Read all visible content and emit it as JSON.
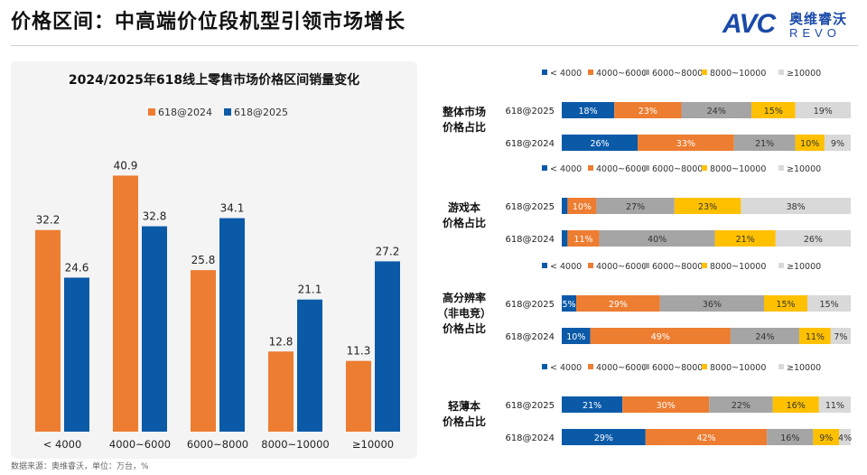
{
  "page": {
    "title": "价格区间：中高端价位段机型引领市场增长",
    "logo": {
      "avc": "AVC",
      "cn": "奥维睿沃",
      "revo": "REVO"
    },
    "footer": "数据来源：奥维睿沃，单位：万台，%"
  },
  "chart_data": [
    {
      "type": "bar",
      "title": "2024/2025年618线上零售市场价格区间销量变化",
      "categories": [
        "< 4000",
        "4000~6000",
        "6000~8000",
        "8000~10000",
        "≥10000"
      ],
      "series": [
        {
          "name": "618@2024",
          "color": "#ed7d31",
          "values": [
            32.2,
            40.9,
            25.8,
            12.8,
            11.3
          ]
        },
        {
          "name": "618@2025",
          "color": "#0b5aa8",
          "values": [
            24.6,
            32.8,
            34.1,
            21.1,
            27.2
          ]
        }
      ],
      "ylim": [
        0,
        45
      ],
      "grid": false,
      "legend": "top"
    },
    {
      "type": "bar",
      "stacked": "percent",
      "title": "整体市场价格占比",
      "categories": [
        "618@2025",
        "618@2024"
      ],
      "legend": "top",
      "series": [
        {
          "name": "< 4000",
          "color": "#0b5aa8",
          "values": [
            18,
            26
          ]
        },
        {
          "name": "4000~6000",
          "color": "#ed7d31",
          "values": [
            23,
            33
          ]
        },
        {
          "name": "6000~8000",
          "color": "#a5a5a5",
          "values": [
            24,
            21
          ]
        },
        {
          "name": "8000~10000",
          "color": "#ffc000",
          "values": [
            15,
            10
          ]
        },
        {
          "name": "≥10000",
          "color": "#d9d9d9",
          "values": [
            19,
            9
          ]
        }
      ]
    },
    {
      "type": "bar",
      "stacked": "percent",
      "title": "游戏本价格占比",
      "categories": [
        "618@2025",
        "618@2024"
      ],
      "legend": "top",
      "series": [
        {
          "name": "< 4000",
          "color": "#0b5aa8",
          "values": [
            2,
            2
          ]
        },
        {
          "name": "4000~6000",
          "color": "#ed7d31",
          "values": [
            10,
            11
          ]
        },
        {
          "name": "6000~8000",
          "color": "#a5a5a5",
          "values": [
            27,
            40
          ]
        },
        {
          "name": "8000~10000",
          "color": "#ffc000",
          "values": [
            23,
            21
          ]
        },
        {
          "name": "≥10000",
          "color": "#d9d9d9",
          "values": [
            38,
            26
          ]
        }
      ]
    },
    {
      "type": "bar",
      "stacked": "percent",
      "title": "高分辨率（非电竞）价格占比",
      "categories": [
        "618@2025",
        "618@2024"
      ],
      "legend": "top",
      "series": [
        {
          "name": "< 4000",
          "color": "#0b5aa8",
          "values": [
            5,
            10
          ]
        },
        {
          "name": "4000~6000",
          "color": "#ed7d31",
          "values": [
            29,
            49
          ]
        },
        {
          "name": "6000~8000",
          "color": "#a5a5a5",
          "values": [
            36,
            24
          ]
        },
        {
          "name": "8000~10000",
          "color": "#ffc000",
          "values": [
            15,
            11
          ]
        },
        {
          "name": "≥10000",
          "color": "#d9d9d9",
          "values": [
            15,
            7
          ]
        }
      ]
    },
    {
      "type": "bar",
      "stacked": "percent",
      "title": "轻薄本价格占比",
      "categories": [
        "618@2025",
        "618@2024"
      ],
      "legend": "top",
      "series": [
        {
          "name": "< 4000",
          "color": "#0b5aa8",
          "values": [
            21,
            29
          ]
        },
        {
          "name": "4000~6000",
          "color": "#ed7d31",
          "values": [
            30,
            42
          ]
        },
        {
          "name": "6000~8000",
          "color": "#a5a5a5",
          "values": [
            22,
            16
          ]
        },
        {
          "name": "8000~10000",
          "color": "#ffc000",
          "values": [
            16,
            9
          ]
        },
        {
          "name": "≥10000",
          "color": "#d9d9d9",
          "values": [
            11,
            4
          ]
        }
      ]
    }
  ],
  "panel_labels": [
    {
      "lines": [
        "整体市场",
        "价格占比"
      ]
    },
    {
      "lines": [
        "游戏本",
        "价格占比"
      ]
    },
    {
      "lines": [
        "高分辨率",
        "（非电竞）",
        "价格占比"
      ]
    },
    {
      "lines": [
        "轻薄本",
        "价格占比"
      ]
    }
  ]
}
